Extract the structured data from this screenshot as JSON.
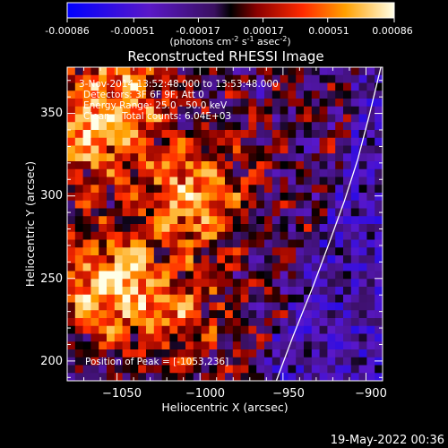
{
  "colorbar": {
    "tick_labels": [
      "-0.00086",
      "-0.00051",
      "-0.00017",
      "0.00017",
      "0.00051",
      "0.00086"
    ],
    "unit_label": {
      "lead": "(photons cm",
      "e1": "-2",
      "mid1": " s",
      "e2": "-1",
      "mid2": " asec",
      "e3": "-2",
      "tail": ")"
    }
  },
  "chart_data": {
    "type": "heatmap",
    "title": "Reconstructed RHESSI Image",
    "xlabel": "Heliocentric X (arcsec)",
    "ylabel": "Heliocentric Y (arcsec)",
    "xlim": [
      -1080,
      -890
    ],
    "ylim": [
      188,
      378
    ],
    "x_ticks": [
      -1050,
      -1000,
      -950,
      -900
    ],
    "x_tick_labels": [
      "−1050",
      "−1000",
      "−950",
      "−900"
    ],
    "y_ticks": [
      200,
      250,
      300,
      350
    ],
    "y_tick_labels": [
      "200",
      "250",
      "300",
      "350"
    ],
    "value_range": [
      -0.00086,
      0.00086
    ],
    "grid": false,
    "annotations": [
      "3-Nov-2014 13:52:48.000 to 13:53:48.000",
      "Detectors: 3F 6F 9F, Att 0",
      "Energy Range: 25.0 - 50.0 keV",
      "Clean    Total counts: 6.04E+03"
    ],
    "peak_label": "Position of Peak = [-1053,236]",
    "peak_position": [
      -1053,
      236
    ],
    "hot_regions": [
      {
        "x": -1055,
        "y": 246,
        "intensity": 1.0
      },
      {
        "x": -1004,
        "y": 302,
        "intensity": 0.85
      },
      {
        "x": -1068,
        "y": 335,
        "intensity": 0.75
      },
      {
        "x": -1045,
        "y": 365,
        "intensity": 0.65
      },
      {
        "x": -1010,
        "y": 230,
        "intensity": 0.5
      }
    ],
    "limb_curve": {
      "x": [
        -954,
        -944,
        -932,
        -922,
        -913,
        -905,
        -898,
        -891
      ],
      "y": [
        188,
        215,
        245,
        272,
        297,
        322,
        349,
        378
      ]
    }
  },
  "footer": {
    "timestamp": "19-May-2022 00:36"
  }
}
